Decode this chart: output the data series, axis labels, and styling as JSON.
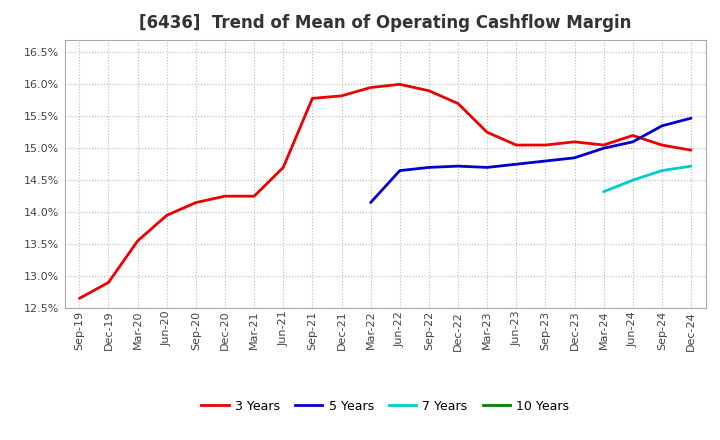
{
  "title": "[6436]  Trend of Mean of Operating Cashflow Margin",
  "ylim": [
    0.125,
    0.167
  ],
  "yticks": [
    0.125,
    0.13,
    0.135,
    0.14,
    0.145,
    0.15,
    0.155,
    0.16,
    0.165
  ],
  "background_color": "#ffffff",
  "grid_color": "#bbbbbb",
  "series": {
    "3 Years": {
      "color": "#ee0000",
      "linewidth": 2.0,
      "x": [
        0,
        1,
        2,
        3,
        4,
        5,
        6,
        7,
        8,
        9,
        10,
        11,
        12,
        13,
        14,
        15,
        16,
        17,
        18,
        19,
        20,
        21
      ],
      "y": [
        0.1265,
        0.129,
        0.1355,
        0.1395,
        0.1415,
        0.1425,
        0.1425,
        0.147,
        0.1578,
        0.1582,
        0.1595,
        0.16,
        0.159,
        0.157,
        0.1525,
        0.1505,
        0.1505,
        0.151,
        0.1505,
        0.152,
        0.1505,
        0.1497
      ]
    },
    "5 Years": {
      "color": "#0000cc",
      "linewidth": 2.0,
      "x": [
        10,
        11,
        12,
        13,
        14,
        15,
        16,
        17,
        18,
        19,
        20,
        21
      ],
      "y": [
        0.1415,
        0.1465,
        0.147,
        0.1472,
        0.147,
        0.1475,
        0.148,
        0.1485,
        0.15,
        0.151,
        0.1535,
        0.1547
      ]
    },
    "7 Years": {
      "color": "#00cccc",
      "linewidth": 2.0,
      "x": [
        18,
        19,
        20,
        21
      ],
      "y": [
        0.1432,
        0.145,
        0.1465,
        0.1472
      ]
    },
    "10 Years": {
      "color": "#008000",
      "linewidth": 2.0,
      "x": [],
      "y": []
    }
  },
  "x_labels": [
    "Sep-19",
    "Dec-19",
    "Mar-20",
    "Jun-20",
    "Sep-20",
    "Dec-20",
    "Mar-21",
    "Jun-21",
    "Sep-21",
    "Dec-21",
    "Mar-22",
    "Jun-22",
    "Sep-22",
    "Dec-22",
    "Mar-23",
    "Jun-23",
    "Sep-23",
    "Dec-23",
    "Mar-24",
    "Jun-24",
    "Sep-24",
    "Dec-24"
  ],
  "legend_entries": [
    "3 Years",
    "5 Years",
    "7 Years",
    "10 Years"
  ],
  "legend_colors": [
    "#ee0000",
    "#0000cc",
    "#00cccc",
    "#008000"
  ],
  "title_fontsize": 12,
  "tick_fontsize": 8,
  "legend_fontsize": 9
}
